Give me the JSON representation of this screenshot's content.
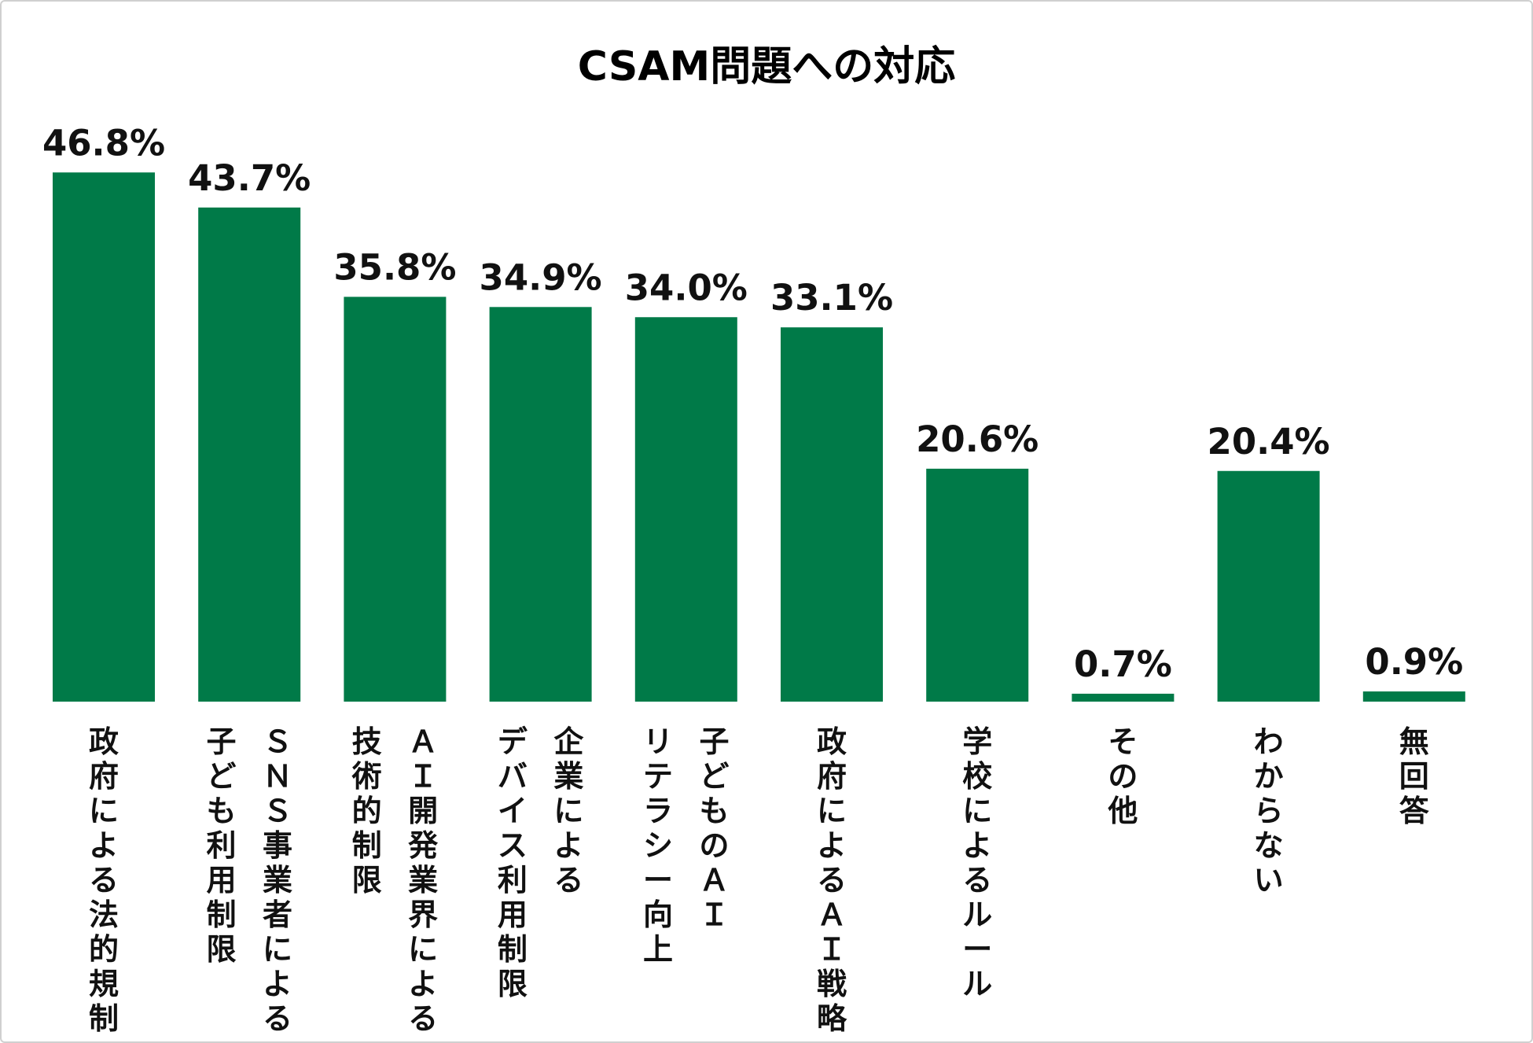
{
  "chart_data": {
    "type": "bar",
    "title": "CSAM問題への対応",
    "xlabel": "",
    "ylabel": "",
    "ylim": [
      0,
      50
    ],
    "grid": false,
    "legend": "none",
    "bar_color": "#007a48",
    "categories": [
      [
        "政府による法的規制"
      ],
      [
        "ＳＮＳ事業者による",
        "子ども利用制限"
      ],
      [
        "ＡＩ開発業界による",
        "技術的制限"
      ],
      [
        "企業による",
        "デバイス利用制限"
      ],
      [
        "子どものＡＩ",
        "リテラシー向上"
      ],
      [
        "政府によるＡＩ戦略"
      ],
      [
        "学校によるルール"
      ],
      [
        "その他"
      ],
      [
        "わからない"
      ],
      [
        "無回答"
      ]
    ],
    "values": [
      46.8,
      43.7,
      35.8,
      34.9,
      34.0,
      33.1,
      20.6,
      0.7,
      20.4,
      0.9
    ],
    "data_labels": [
      "46.8%",
      "43.7%",
      "35.8%",
      "34.9%",
      "34.0%",
      "33.1%",
      "20.6%",
      "0.7%",
      "20.4%",
      "0.9%"
    ]
  }
}
